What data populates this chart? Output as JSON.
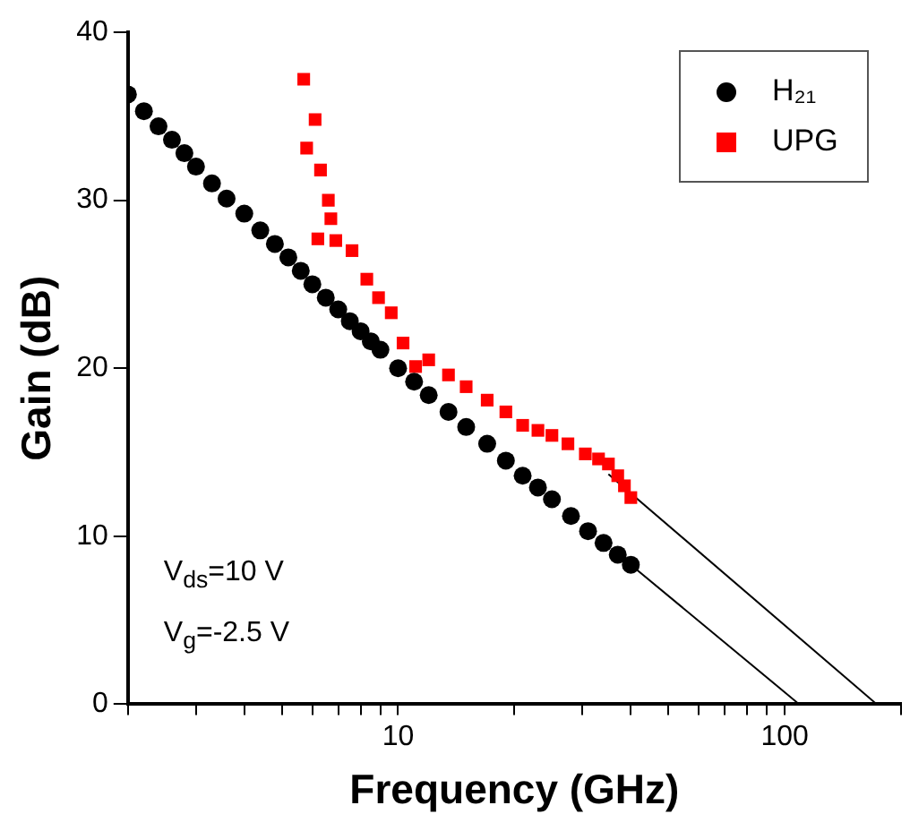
{
  "chart_data": {
    "type": "scatter",
    "xlabel": "Frequency (GHz)",
    "ylabel": "Gain (dB)",
    "log": "x",
    "xlim": [
      2,
      200
    ],
    "ylim": [
      0,
      40
    ],
    "xticks": [
      {
        "value": 2,
        "label": null
      },
      {
        "value": 3,
        "label": null
      },
      {
        "value": 4,
        "label": null
      },
      {
        "value": 5,
        "label": null
      },
      {
        "value": 6,
        "label": null
      },
      {
        "value": 7,
        "label": null
      },
      {
        "value": 8,
        "label": null
      },
      {
        "value": 9,
        "label": null
      },
      10,
      {
        "value": 20,
        "label": null
      },
      {
        "value": 30,
        "label": null
      },
      {
        "value": 40,
        "label": null
      },
      {
        "value": 50,
        "label": null
      },
      {
        "value": 60,
        "label": null
      },
      {
        "value": 70,
        "label": null
      },
      {
        "value": 80,
        "label": null
      },
      {
        "value": 90,
        "label": null
      },
      100,
      {
        "value": 200,
        "label": null
      }
    ],
    "yticks": [
      0,
      10,
      20,
      30,
      40
    ],
    "grid": false,
    "legend": "top right",
    "annotations": [
      "V$_{ds}$=10 V",
      "V$_{g}$=-2.5 V"
    ],
    "series": [
      {
        "name": "H₂₁",
        "color": "#000000",
        "marker": "circle",
        "x": [
          2,
          2.2,
          2.4,
          2.6,
          2.8,
          3,
          3.3,
          3.6,
          4,
          4.4,
          4.8,
          5.2,
          5.6,
          6,
          6.5,
          7,
          7.5,
          8,
          8.5,
          9,
          10,
          11,
          12,
          13.5,
          15,
          17,
          19,
          21,
          23,
          25,
          28,
          31,
          34,
          37,
          40
        ],
        "values": [
          36.3,
          35.3,
          34.4,
          33.6,
          32.8,
          32.0,
          31.0,
          30.1,
          29.2,
          28.2,
          27.4,
          26.6,
          25.8,
          25.0,
          24.2,
          23.5,
          22.8,
          22.2,
          21.6,
          21.1,
          20.0,
          19.2,
          18.4,
          17.4,
          16.5,
          15.5,
          14.5,
          13.6,
          12.9,
          12.2,
          11.2,
          10.3,
          9.6,
          8.9,
          8.3
        ]
      },
      {
        "name": "UPG",
        "color": "#ff0000",
        "marker": "square",
        "x": [
          5.7,
          5.8,
          6.1,
          6.3,
          6.6,
          6.7,
          6.2,
          6.9,
          7.6,
          8.3,
          8.9,
          9.6,
          10.3,
          11.1,
          12,
          13.5,
          15,
          17,
          19,
          21,
          23,
          25,
          27.5,
          30.5,
          33,
          35,
          37,
          38.5,
          40
        ],
        "values": [
          37.2,
          33.1,
          34.8,
          31.8,
          30.0,
          28.9,
          27.7,
          27.6,
          27.0,
          25.3,
          24.2,
          23.3,
          21.5,
          20.1,
          20.5,
          19.6,
          18.9,
          18.1,
          17.4,
          16.6,
          16.3,
          16.0,
          15.5,
          14.9,
          14.6,
          14.3,
          13.6,
          13.0,
          12.3
        ]
      },
      {
        "type": "line",
        "color": "#000000",
        "marker": "none",
        "x": [
          40,
          109
        ],
        "values": [
          8.3,
          0
        ]
      },
      {
        "type": "line",
        "color": "#000000",
        "marker": "none",
        "x": [
          35,
          173
        ],
        "values": [
          13.7,
          0
        ]
      }
    ]
  }
}
